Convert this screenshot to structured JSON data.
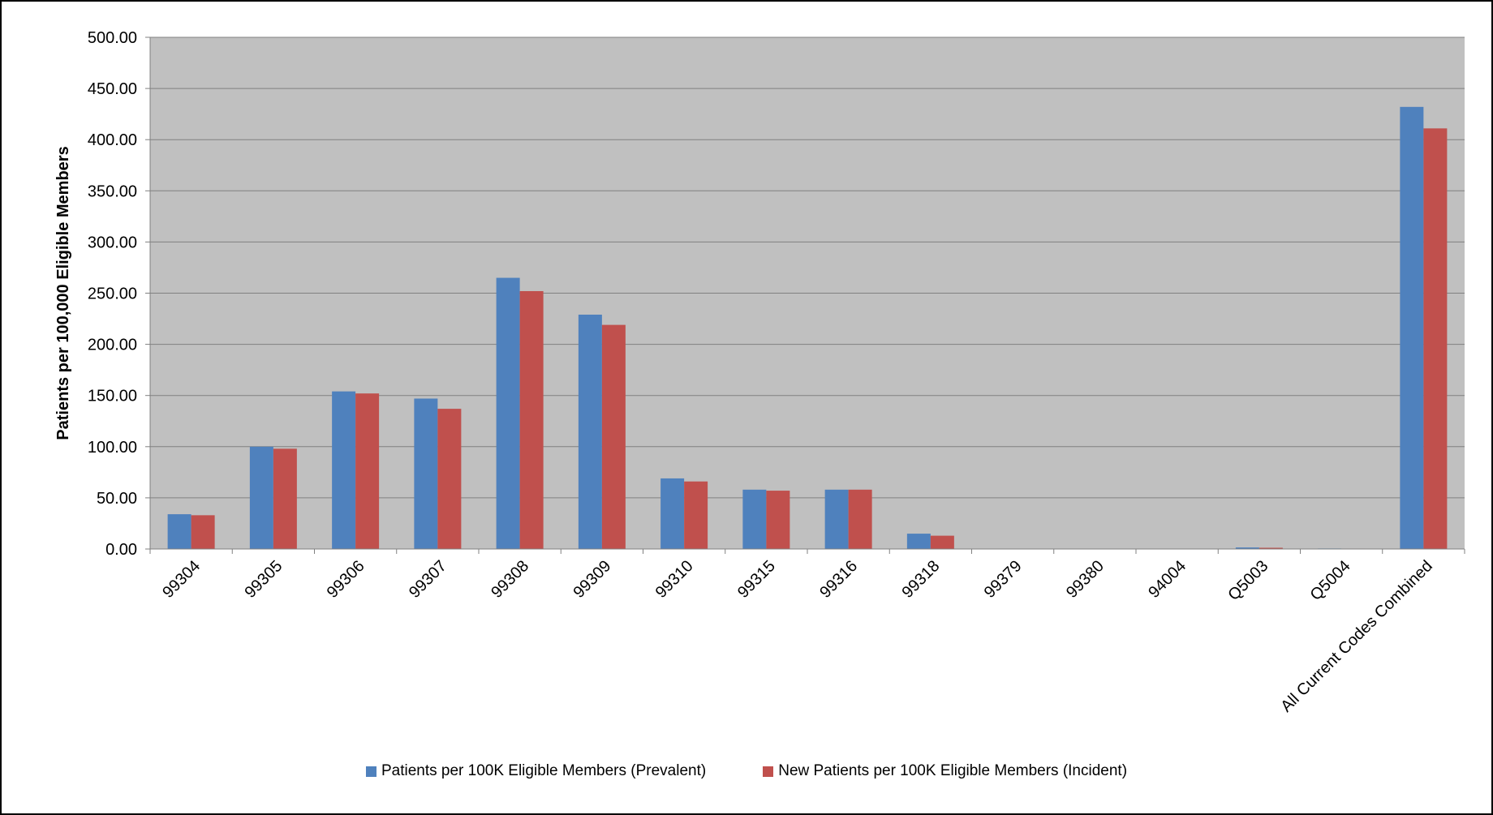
{
  "chart_data": {
    "type": "bar",
    "title": "",
    "xlabel": "",
    "ylabel": "Patients per 100,000 Eligible Members",
    "ylim": [
      0,
      500
    ],
    "yticks": [
      "0.00",
      "50.00",
      "100.00",
      "150.00",
      "200.00",
      "250.00",
      "300.00",
      "350.00",
      "400.00",
      "450.00",
      "500.00"
    ],
    "grid": true,
    "legend_position": "bottom",
    "categories": [
      "99304",
      "99305",
      "99306",
      "99307",
      "99308",
      "99309",
      "99310",
      "99315",
      "99316",
      "99318",
      "99379",
      "99380",
      "94004",
      "Q5003",
      "Q5004",
      "All Current Codes Combined"
    ],
    "series": [
      {
        "name": "Patients per 100K Eligible Members (Prevalent)",
        "color": "#4F81BD",
        "values": [
          34,
          100,
          154,
          147,
          265,
          229,
          69,
          58,
          58,
          15,
          0,
          0,
          0,
          1.5,
          0.5,
          432
        ]
      },
      {
        "name": "New Patients per 100K Eligible Members (Incident)",
        "color": "#C0504D",
        "values": [
          33,
          98,
          152,
          137,
          252,
          219,
          66,
          57,
          58,
          13,
          0,
          0,
          0,
          1.2,
          0.4,
          411
        ]
      }
    ],
    "plot_background": "#C0C0C0",
    "grid_color": "#808080"
  }
}
